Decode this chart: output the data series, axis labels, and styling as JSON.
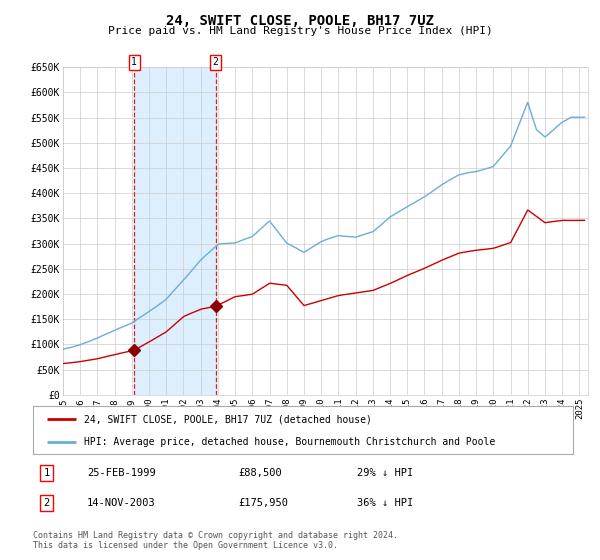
{
  "title": "24, SWIFT CLOSE, POOLE, BH17 7UZ",
  "subtitle": "Price paid vs. HM Land Registry's House Price Index (HPI)",
  "legend_line1": "24, SWIFT CLOSE, POOLE, BH17 7UZ (detached house)",
  "legend_line2": "HPI: Average price, detached house, Bournemouth Christchurch and Poole",
  "footer": "Contains HM Land Registry data © Crown copyright and database right 2024.\nThis data is licensed under the Open Government Licence v3.0.",
  "table_rows": [
    {
      "num": "1",
      "date": "25-FEB-1999",
      "price": "£88,500",
      "hpi": "29% ↓ HPI"
    },
    {
      "num": "2",
      "date": "14-NOV-2003",
      "price": "£175,950",
      "hpi": "36% ↓ HPI"
    }
  ],
  "sale1_date_num": 1999.14,
  "sale1_price": 88500,
  "sale2_date_num": 2003.87,
  "sale2_price": 175950,
  "hpi_color": "#6baed6",
  "price_color": "#cc0000",
  "marker_color": "#8b0000",
  "shade_color": "#ddeeff",
  "grid_color": "#cccccc",
  "bg_color": "#ffffff",
  "plot_bg_color": "#ffffff",
  "ylim": [
    0,
    650000
  ],
  "xlim_start": 1995.0,
  "xlim_end": 2025.5,
  "yticks": [
    0,
    50000,
    100000,
    150000,
    200000,
    250000,
    300000,
    350000,
    400000,
    450000,
    500000,
    550000,
    600000,
    650000
  ],
  "ytick_labels": [
    "£0",
    "£50K",
    "£100K",
    "£150K",
    "£200K",
    "£250K",
    "£300K",
    "£350K",
    "£400K",
    "£450K",
    "£500K",
    "£550K",
    "£600K",
    "£650K"
  ],
  "hpi_anchors_x": [
    1995,
    1996,
    1997,
    1998,
    1999,
    2000,
    2001,
    2002,
    2003,
    2004,
    2005,
    2006,
    2007,
    2008,
    2009,
    2010,
    2011,
    2012,
    2013,
    2014,
    2015,
    2016,
    2017,
    2018,
    2019,
    2020,
    2021,
    2022,
    2022.5,
    2023,
    2024,
    2024.5,
    2025
  ],
  "hpi_anchors_y": [
    90000,
    100000,
    113000,
    128000,
    142000,
    165000,
    190000,
    228000,
    268000,
    298000,
    300000,
    312000,
    342000,
    298000,
    280000,
    300000,
    312000,
    308000,
    318000,
    348000,
    368000,
    388000,
    412000,
    432000,
    438000,
    448000,
    488000,
    575000,
    520000,
    505000,
    535000,
    545000,
    545000
  ],
  "price_anchors_x": [
    1995,
    1996,
    1997,
    1998,
    1999.14,
    2000,
    2001,
    2002,
    2003,
    2003.87,
    2005,
    2006,
    2007,
    2008,
    2009,
    2010,
    2011,
    2012,
    2013,
    2014,
    2015,
    2016,
    2017,
    2018,
    2019,
    2020,
    2021,
    2022,
    2023,
    2024,
    2025
  ],
  "price_anchors_y": [
    62000,
    66000,
    72000,
    80000,
    88500,
    105000,
    125000,
    155000,
    170000,
    175950,
    195000,
    200000,
    222000,
    218000,
    178000,
    188000,
    198000,
    203000,
    208000,
    222000,
    238000,
    252000,
    268000,
    282000,
    288000,
    292000,
    303000,
    368000,
    343000,
    348000,
    348000
  ]
}
